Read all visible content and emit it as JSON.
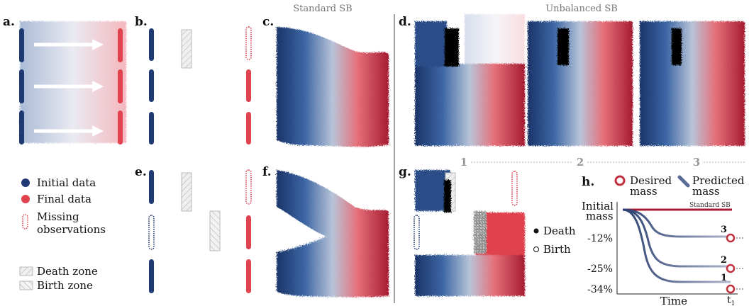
{
  "headers": {
    "standard": "Standard SB",
    "unbalanced": "Unbalanced SB"
  },
  "panel_labels": [
    "a.",
    "b.",
    "c.",
    "d.",
    "e.",
    "f.",
    "g.",
    "h."
  ],
  "legend": {
    "initial": "Initial data",
    "final": "Final data",
    "missing_1": "Missing",
    "missing_2": "observations",
    "death_zone": "Death zone",
    "birth_zone": "Birth zone",
    "death": "Death",
    "birth": "Birth"
  },
  "d_panel_numbers": [
    "1",
    "2",
    "3"
  ],
  "panel_h": {
    "desired_1": "Desired",
    "desired_2": "mass",
    "predicted_1": "Predicted",
    "predicted_2": "mass",
    "ylabel_1": "Initial",
    "ylabel_2": "mass",
    "standard_label": "Standard SB",
    "ticks": [
      "-12%",
      "-25%",
      "-34%"
    ],
    "curve_numbers": [
      "3",
      "2",
      "1"
    ],
    "xlabel": "Time",
    "t1_main": "t",
    "t1_sub": "1"
  },
  "colors": {
    "initial": "#1f3a73",
    "final": "#e0424e",
    "dark_red": "#a51c32",
    "light": "#c9d3e2",
    "zone_fill": "#e6e6e6"
  }
}
